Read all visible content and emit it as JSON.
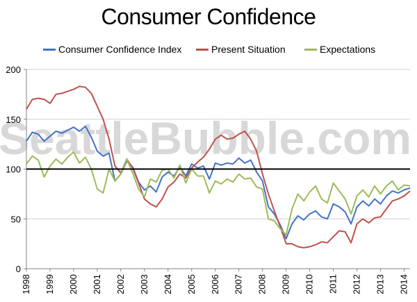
{
  "chart_data": {
    "type": "line",
    "title": "Consumer Confidence",
    "xlabel": "",
    "ylabel": "",
    "xlim": [
      1998.0,
      2014.25
    ],
    "ylim": [
      0,
      200
    ],
    "y_ticks": [
      0,
      50,
      100,
      150,
      200
    ],
    "x_ticks": [
      "1998",
      "1999",
      "2000",
      "2001",
      "2002",
      "2003",
      "2004",
      "2005",
      "2006",
      "2007",
      "2008",
      "2009",
      "2010",
      "2011",
      "2012",
      "2013",
      "2014"
    ],
    "grid": "horizontal",
    "legend_position": "top",
    "reference_line": {
      "y": 100,
      "color": "#000000"
    },
    "watermark": "SeattleBubble.com",
    "series": [
      {
        "name": "Consumer Confidence Index",
        "color": "#4472c4",
        "x": [
          1998.0,
          1998.25,
          1998.5,
          1998.75,
          1999.0,
          1999.25,
          1999.5,
          1999.75,
          2000.0,
          2000.25,
          2000.5,
          2000.75,
          2001.0,
          2001.25,
          2001.5,
          2001.75,
          2002.0,
          2002.25,
          2002.5,
          2002.75,
          2003.0,
          2003.25,
          2003.5,
          2003.75,
          2004.0,
          2004.25,
          2004.5,
          2004.75,
          2005.0,
          2005.25,
          2005.5,
          2005.75,
          2006.0,
          2006.25,
          2006.5,
          2006.75,
          2007.0,
          2007.25,
          2007.5,
          2007.75,
          2008.0,
          2008.25,
          2008.5,
          2008.75,
          2009.0,
          2009.25,
          2009.5,
          2009.75,
          2010.0,
          2010.25,
          2010.5,
          2010.75,
          2011.0,
          2011.25,
          2011.5,
          2011.75,
          2012.0,
          2012.25,
          2012.5,
          2012.75,
          2013.0,
          2013.25,
          2013.5,
          2013.75,
          2014.0,
          2014.25
        ],
        "values": [
          128,
          137,
          135,
          128,
          133,
          138,
          136,
          139,
          142,
          138,
          143,
          132,
          118,
          113,
          116,
          88,
          95,
          108,
          102,
          87,
          79,
          83,
          77,
          92,
          97,
          93,
          102,
          93,
          105,
          101,
          103,
          90,
          106,
          104,
          106,
          105,
          111,
          106,
          109,
          97,
          88,
          62,
          55,
          44,
          30,
          45,
          53,
          49,
          55,
          58,
          52,
          50,
          65,
          62,
          57,
          45,
          62,
          68,
          63,
          70,
          65,
          73,
          78,
          76,
          79,
          81
        ]
      },
      {
        "name": "Present Situation",
        "color": "#c0504d",
        "x": [
          1998.0,
          1998.25,
          1998.5,
          1998.75,
          1999.0,
          1999.25,
          1999.5,
          1999.75,
          2000.0,
          2000.25,
          2000.5,
          2000.75,
          2001.0,
          2001.25,
          2001.5,
          2001.75,
          2002.0,
          2002.25,
          2002.5,
          2002.75,
          2003.0,
          2003.25,
          2003.5,
          2003.75,
          2004.0,
          2004.25,
          2004.5,
          2004.75,
          2005.0,
          2005.25,
          2005.5,
          2005.75,
          2006.0,
          2006.25,
          2006.5,
          2006.75,
          2007.0,
          2007.25,
          2007.5,
          2007.75,
          2008.0,
          2008.25,
          2008.5,
          2008.75,
          2009.0,
          2009.25,
          2009.5,
          2009.75,
          2010.0,
          2010.25,
          2010.5,
          2010.75,
          2011.0,
          2011.25,
          2011.5,
          2011.75,
          2012.0,
          2012.25,
          2012.5,
          2012.75,
          2013.0,
          2013.25,
          2013.5,
          2013.75,
          2014.0,
          2014.25
        ],
        "values": [
          160,
          170,
          171,
          170,
          166,
          175,
          176,
          178,
          180,
          183,
          182,
          176,
          163,
          150,
          130,
          103,
          96,
          110,
          101,
          86,
          70,
          65,
          62,
          70,
          82,
          87,
          95,
          91,
          101,
          107,
          112,
          120,
          130,
          134,
          130,
          131,
          135,
          138,
          130,
          118,
          95,
          75,
          58,
          42,
          25,
          25,
          22,
          21,
          22,
          24,
          27,
          26,
          32,
          38,
          37,
          26,
          45,
          50,
          46,
          51,
          52,
          60,
          68,
          70,
          73,
          78
        ]
      },
      {
        "name": "Expectations",
        "color": "#9bbb59",
        "x": [
          1998.0,
          1998.25,
          1998.5,
          1998.75,
          1999.0,
          1999.25,
          1999.5,
          1999.75,
          2000.0,
          2000.25,
          2000.5,
          2000.75,
          2001.0,
          2001.25,
          2001.5,
          2001.75,
          2002.0,
          2002.25,
          2002.5,
          2002.75,
          2003.0,
          2003.25,
          2003.5,
          2003.75,
          2004.0,
          2004.25,
          2004.5,
          2004.75,
          2005.0,
          2005.25,
          2005.5,
          2005.75,
          2006.0,
          2006.25,
          2006.5,
          2006.75,
          2007.0,
          2007.25,
          2007.5,
          2007.75,
          2008.0,
          2008.25,
          2008.5,
          2008.75,
          2009.0,
          2009.25,
          2009.5,
          2009.75,
          2010.0,
          2010.25,
          2010.5,
          2010.75,
          2011.0,
          2011.25,
          2011.5,
          2011.75,
          2012.0,
          2012.25,
          2012.5,
          2012.75,
          2013.0,
          2013.25,
          2013.5,
          2013.75,
          2014.0,
          2014.25
        ],
        "values": [
          105,
          113,
          109,
          92,
          103,
          110,
          105,
          112,
          117,
          106,
          112,
          100,
          80,
          76,
          100,
          88,
          95,
          110,
          96,
          80,
          72,
          90,
          87,
          99,
          100,
          91,
          104,
          86,
          100,
          93,
          93,
          76,
          88,
          85,
          90,
          87,
          95,
          90,
          91,
          82,
          80,
          50,
          48,
          40,
          34,
          60,
          75,
          68,
          77,
          83,
          70,
          66,
          86,
          78,
          70,
          55,
          73,
          79,
          72,
          83,
          75,
          83,
          88,
          79,
          84,
          83
        ]
      }
    ]
  }
}
